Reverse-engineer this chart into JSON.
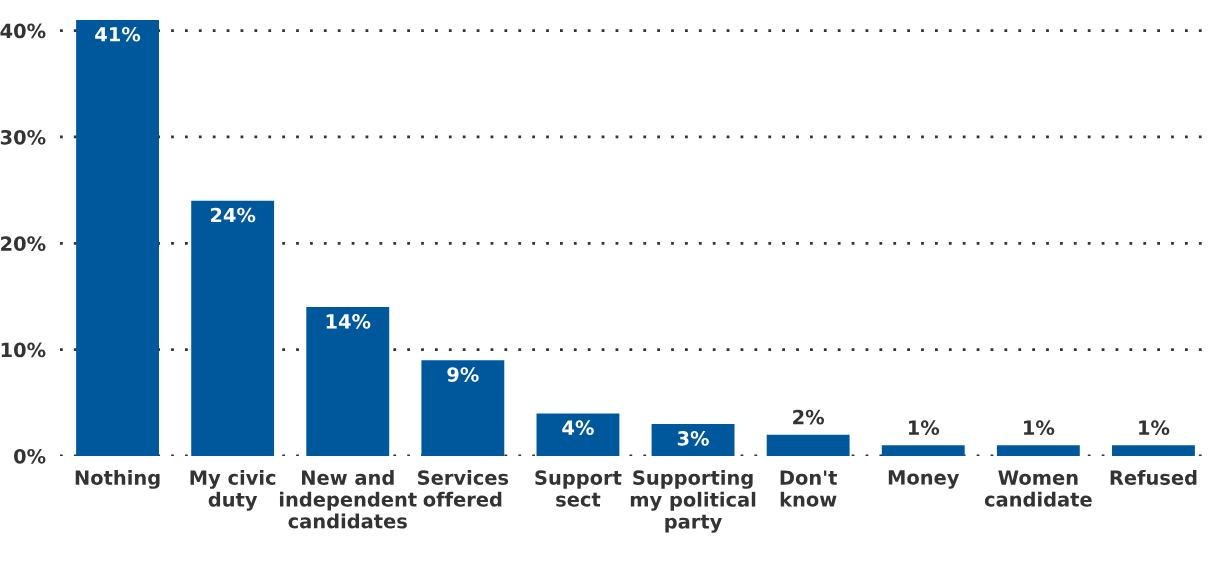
{
  "chart_data": {
    "type": "bar",
    "categories": [
      "Nothing",
      "My civic\nduty",
      "New and\nindependent\ncandidates",
      "Services\noffered",
      "Support\nsect",
      "Supporting\nmy political\nparty",
      "Don't\nknow",
      "Money",
      "Women\ncandidate",
      "Refused"
    ],
    "values": [
      41,
      24,
      14,
      9,
      4,
      3,
      2,
      1,
      1,
      1
    ],
    "value_labels": [
      "41%",
      "24%",
      "14%",
      "9%",
      "4%",
      "3%",
      "2%",
      "1%",
      "1%",
      "1%"
    ],
    "color": "#00589c",
    "ylim": [
      0,
      41
    ],
    "yticks": [
      {
        "value": 0,
        "label": "0%"
      },
      {
        "value": 10,
        "label": "10%"
      },
      {
        "value": 20,
        "label": "20%"
      },
      {
        "value": 30,
        "label": "30%"
      },
      {
        "value": 40,
        "label": "40%"
      }
    ],
    "grid": "y"
  }
}
